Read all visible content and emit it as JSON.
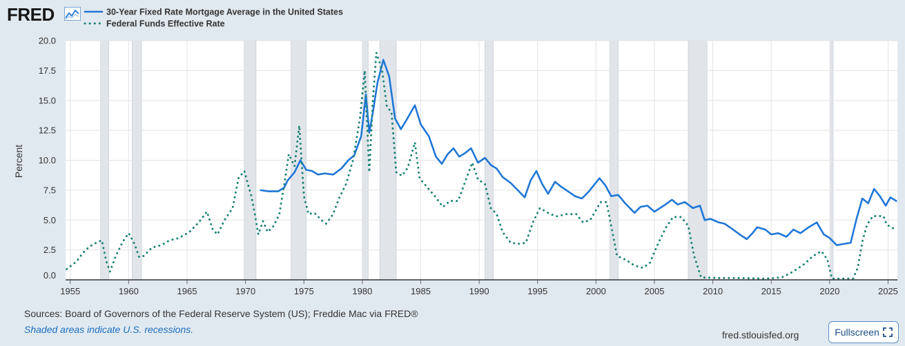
{
  "header": {
    "logo_text": "FRED"
  },
  "footer": {
    "sources": "Sources: Board of Governors of the Federal Reserve System (US); Freddie Mac via FRED®",
    "recession_note": "Shaded areas indicate U.S. recessions.",
    "url": "fred.stlouisfed.org",
    "fullscreen_label": "Fullscreen"
  },
  "colors": {
    "mortgage": "#1f77d6",
    "fedfunds": "#1c8276",
    "recession": "#e1e5ea",
    "grid": "#e3e3e3",
    "background": "#e1e9f0",
    "plot": "#ffffff"
  },
  "icons": {
    "logo_chart": "line-chart-icon",
    "fullscreen": "expand-corners-icon"
  },
  "chart_data": {
    "type": "line",
    "title": "",
    "xlabel": "",
    "ylabel": "Percent",
    "xlim": [
      1954.6,
      2025.8
    ],
    "ylim": [
      0,
      20
    ],
    "yticks": [
      "0.0",
      "2.5",
      "5.0",
      "7.5",
      "10.0",
      "12.5",
      "15.0",
      "17.5",
      "20.0"
    ],
    "xticks": [
      "1955",
      "1960",
      "1965",
      "1970",
      "1975",
      "1980",
      "1985",
      "1990",
      "1995",
      "2000",
      "2005",
      "2010",
      "2015",
      "2020",
      "2025"
    ],
    "grid": true,
    "legend_position": "top-left",
    "recessions": [
      [
        1957.6,
        1958.3
      ],
      [
        1960.3,
        1961.1
      ],
      [
        1969.9,
        1970.9
      ],
      [
        1973.9,
        1975.2
      ],
      [
        1980.0,
        1980.5
      ],
      [
        1981.5,
        1982.9
      ],
      [
        1990.5,
        1991.2
      ],
      [
        2001.2,
        2001.9
      ],
      [
        2007.9,
        2009.5
      ],
      [
        2020.1,
        2020.3
      ]
    ],
    "series": [
      {
        "name": "30-Year Fixed Rate Mortgage Average in the United States",
        "style": "solid",
        "points": [
          [
            1971.3,
            7.5
          ],
          [
            1972.0,
            7.4
          ],
          [
            1972.8,
            7.4
          ],
          [
            1973.3,
            7.7
          ],
          [
            1973.6,
            8.3
          ],
          [
            1974.2,
            9.0
          ],
          [
            1974.7,
            10.0
          ],
          [
            1975.2,
            9.2
          ],
          [
            1975.7,
            9.1
          ],
          [
            1976.2,
            8.8
          ],
          [
            1976.8,
            8.9
          ],
          [
            1977.5,
            8.8
          ],
          [
            1978.2,
            9.3
          ],
          [
            1978.8,
            10.0
          ],
          [
            1979.3,
            10.4
          ],
          [
            1979.9,
            12.0
          ],
          [
            1980.3,
            15.5
          ],
          [
            1980.6,
            12.3
          ],
          [
            1980.9,
            14.0
          ],
          [
            1981.3,
            16.5
          ],
          [
            1981.8,
            18.4
          ],
          [
            1982.3,
            17.0
          ],
          [
            1982.8,
            13.5
          ],
          [
            1983.3,
            12.6
          ],
          [
            1983.8,
            13.4
          ],
          [
            1984.5,
            14.6
          ],
          [
            1985.0,
            13.0
          ],
          [
            1985.7,
            12.0
          ],
          [
            1986.3,
            10.3
          ],
          [
            1986.8,
            9.7
          ],
          [
            1987.3,
            10.5
          ],
          [
            1987.8,
            11.0
          ],
          [
            1988.3,
            10.3
          ],
          [
            1988.8,
            10.6
          ],
          [
            1989.3,
            11.0
          ],
          [
            1989.9,
            9.8
          ],
          [
            1990.5,
            10.2
          ],
          [
            1991.0,
            9.6
          ],
          [
            1991.5,
            9.3
          ],
          [
            1992.0,
            8.6
          ],
          [
            1992.7,
            8.1
          ],
          [
            1993.3,
            7.5
          ],
          [
            1993.9,
            6.9
          ],
          [
            1994.4,
            8.3
          ],
          [
            1994.9,
            9.1
          ],
          [
            1995.4,
            8.0
          ],
          [
            1995.9,
            7.2
          ],
          [
            1996.5,
            8.2
          ],
          [
            1997.0,
            7.8
          ],
          [
            1997.6,
            7.4
          ],
          [
            1998.2,
            7.0
          ],
          [
            1998.8,
            6.8
          ],
          [
            1999.4,
            7.4
          ],
          [
            2000.3,
            8.5
          ],
          [
            2000.8,
            7.9
          ],
          [
            2001.3,
            7.0
          ],
          [
            2001.9,
            7.1
          ],
          [
            2002.5,
            6.4
          ],
          [
            2003.3,
            5.6
          ],
          [
            2003.8,
            6.1
          ],
          [
            2004.4,
            6.2
          ],
          [
            2005.0,
            5.7
          ],
          [
            2005.8,
            6.2
          ],
          [
            2006.5,
            6.7
          ],
          [
            2007.0,
            6.3
          ],
          [
            2007.6,
            6.5
          ],
          [
            2008.3,
            6.0
          ],
          [
            2008.9,
            6.2
          ],
          [
            2009.3,
            5.0
          ],
          [
            2009.8,
            5.1
          ],
          [
            2010.5,
            4.8
          ],
          [
            2011.0,
            4.7
          ],
          [
            2011.6,
            4.3
          ],
          [
            2012.3,
            3.8
          ],
          [
            2012.9,
            3.4
          ],
          [
            2013.4,
            3.9
          ],
          [
            2013.8,
            4.4
          ],
          [
            2014.5,
            4.2
          ],
          [
            2015.0,
            3.8
          ],
          [
            2015.6,
            3.9
          ],
          [
            2016.3,
            3.6
          ],
          [
            2016.9,
            4.2
          ],
          [
            2017.5,
            3.9
          ],
          [
            2018.2,
            4.4
          ],
          [
            2018.9,
            4.8
          ],
          [
            2019.5,
            3.8
          ],
          [
            2020.0,
            3.5
          ],
          [
            2020.6,
            2.9
          ],
          [
            2021.2,
            3.0
          ],
          [
            2021.8,
            3.1
          ],
          [
            2022.3,
            5.1
          ],
          [
            2022.8,
            6.8
          ],
          [
            2023.3,
            6.4
          ],
          [
            2023.8,
            7.6
          ],
          [
            2024.3,
            7.0
          ],
          [
            2024.8,
            6.2
          ],
          [
            2025.2,
            6.9
          ],
          [
            2025.7,
            6.6
          ]
        ]
      },
      {
        "name": "Federal Funds Effective Rate",
        "style": "dotted",
        "points": [
          [
            1954.7,
            0.9
          ],
          [
            1955.5,
            1.5
          ],
          [
            1956.3,
            2.5
          ],
          [
            1957.0,
            3.0
          ],
          [
            1957.7,
            3.3
          ],
          [
            1958.1,
            1.5
          ],
          [
            1958.4,
            0.7
          ],
          [
            1958.9,
            2.0
          ],
          [
            1959.5,
            3.2
          ],
          [
            1960.0,
            3.9
          ],
          [
            1960.5,
            3.0
          ],
          [
            1960.9,
            1.9
          ],
          [
            1961.3,
            2.0
          ],
          [
            1962.0,
            2.7
          ],
          [
            1962.8,
            2.9
          ],
          [
            1963.5,
            3.3
          ],
          [
            1964.3,
            3.5
          ],
          [
            1965.2,
            4.0
          ],
          [
            1966.0,
            4.8
          ],
          [
            1966.7,
            5.7
          ],
          [
            1967.2,
            4.2
          ],
          [
            1967.6,
            3.8
          ],
          [
            1968.2,
            5.0
          ],
          [
            1968.9,
            6.0
          ],
          [
            1969.4,
            8.5
          ],
          [
            1969.9,
            9.1
          ],
          [
            1970.5,
            7.0
          ],
          [
            1970.8,
            5.5
          ],
          [
            1971.1,
            3.8
          ],
          [
            1971.5,
            4.9
          ],
          [
            1971.9,
            4.0
          ],
          [
            1972.4,
            4.5
          ],
          [
            1972.9,
            5.5
          ],
          [
            1973.4,
            8.5
          ],
          [
            1973.7,
            10.5
          ],
          [
            1974.2,
            9.5
          ],
          [
            1974.6,
            12.9
          ],
          [
            1975.0,
            7.0
          ],
          [
            1975.4,
            5.5
          ],
          [
            1975.9,
            5.6
          ],
          [
            1976.5,
            5.0
          ],
          [
            1976.9,
            4.7
          ],
          [
            1977.5,
            5.5
          ],
          [
            1978.0,
            6.8
          ],
          [
            1978.6,
            8.0
          ],
          [
            1979.2,
            10.0
          ],
          [
            1979.8,
            13.5
          ],
          [
            1980.2,
            17.5
          ],
          [
            1980.6,
            9.0
          ],
          [
            1980.9,
            15.0
          ],
          [
            1981.2,
            19.0
          ],
          [
            1981.7,
            17.5
          ],
          [
            1982.1,
            14.5
          ],
          [
            1982.5,
            14.0
          ],
          [
            1982.9,
            9.0
          ],
          [
            1983.4,
            8.7
          ],
          [
            1983.9,
            9.4
          ],
          [
            1984.5,
            11.5
          ],
          [
            1984.9,
            8.5
          ],
          [
            1985.5,
            7.8
          ],
          [
            1986.2,
            7.0
          ],
          [
            1986.9,
            6.1
          ],
          [
            1987.5,
            6.6
          ],
          [
            1988.2,
            6.6
          ],
          [
            1988.8,
            8.2
          ],
          [
            1989.4,
            9.8
          ],
          [
            1989.9,
            8.4
          ],
          [
            1990.5,
            8.0
          ],
          [
            1991.0,
            6.0
          ],
          [
            1991.5,
            5.5
          ],
          [
            1992.0,
            4.0
          ],
          [
            1992.7,
            3.1
          ],
          [
            1993.5,
            3.0
          ],
          [
            1994.0,
            3.1
          ],
          [
            1994.6,
            4.8
          ],
          [
            1995.2,
            6.0
          ],
          [
            1995.9,
            5.6
          ],
          [
            1996.6,
            5.3
          ],
          [
            1997.5,
            5.5
          ],
          [
            1998.3,
            5.5
          ],
          [
            1998.9,
            4.8
          ],
          [
            1999.5,
            5.0
          ],
          [
            2000.4,
            6.5
          ],
          [
            2000.9,
            6.5
          ],
          [
            2001.3,
            4.5
          ],
          [
            2001.8,
            2.0
          ],
          [
            2002.5,
            1.7
          ],
          [
            2003.3,
            1.2
          ],
          [
            2004.0,
            1.0
          ],
          [
            2004.6,
            1.4
          ],
          [
            2005.3,
            3.0
          ],
          [
            2006.0,
            4.4
          ],
          [
            2006.6,
            5.25
          ],
          [
            2007.3,
            5.25
          ],
          [
            2007.9,
            4.5
          ],
          [
            2008.4,
            2.0
          ],
          [
            2009.0,
            0.2
          ],
          [
            2010.5,
            0.15
          ],
          [
            2012.5,
            0.15
          ],
          [
            2014.5,
            0.1
          ],
          [
            2015.9,
            0.2
          ],
          [
            2016.9,
            0.7
          ],
          [
            2017.8,
            1.3
          ],
          [
            2018.6,
            2.0
          ],
          [
            2019.3,
            2.4
          ],
          [
            2019.8,
            1.7
          ],
          [
            2020.2,
            0.1
          ],
          [
            2021.5,
            0.1
          ],
          [
            2022.0,
            0.1
          ],
          [
            2022.4,
            1.0
          ],
          [
            2022.8,
            3.2
          ],
          [
            2023.2,
            4.6
          ],
          [
            2023.7,
            5.33
          ],
          [
            2024.6,
            5.33
          ],
          [
            2024.9,
            4.6
          ],
          [
            2025.4,
            4.33
          ],
          [
            2025.7,
            4.1
          ]
        ]
      }
    ]
  }
}
